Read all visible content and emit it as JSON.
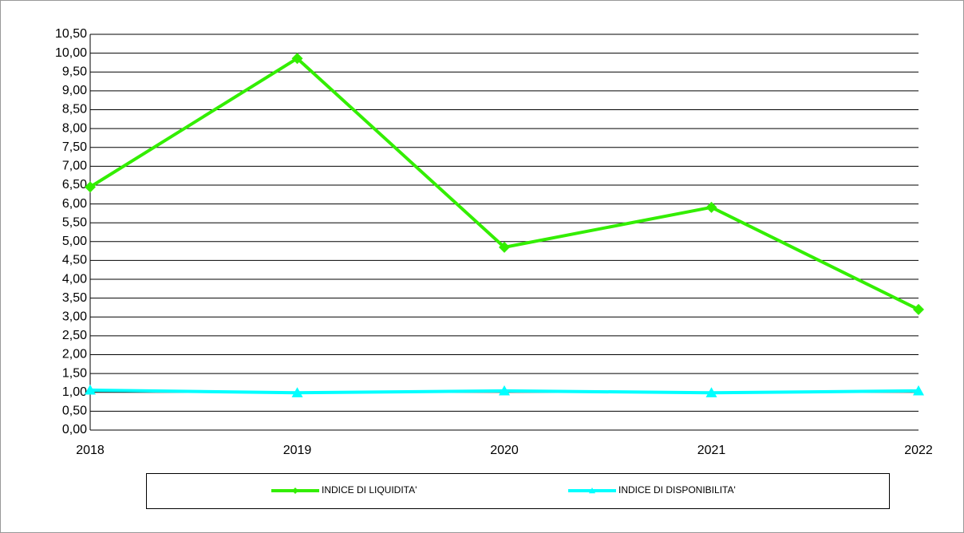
{
  "chart_data": {
    "type": "line",
    "categories": [
      "2018",
      "2019",
      "2020",
      "2021",
      "2022"
    ],
    "series": [
      {
        "name": "INDICE DI LIQUIDITA'",
        "color": "#33ee00",
        "marker": "diamond",
        "values": [
          6.45,
          9.86,
          4.85,
          5.91,
          3.2
        ]
      },
      {
        "name": "INDICE DI DISPONIBILITA'",
        "color": "#00ffff",
        "marker": "triangle",
        "values": [
          1.06,
          0.99,
          1.04,
          0.99,
          1.04
        ]
      }
    ],
    "ylim": [
      0,
      10.5
    ],
    "yticks": [
      {
        "value": 0,
        "label": "0,00"
      },
      {
        "value": 0.5,
        "label": "0,50"
      },
      {
        "value": 1,
        "label": "1,00"
      },
      {
        "value": 1.5,
        "label": "1,50"
      },
      {
        "value": 2,
        "label": "2,00"
      },
      {
        "value": 2.5,
        "label": "2,50"
      },
      {
        "value": 3,
        "label": "3,00"
      },
      {
        "value": 3.5,
        "label": "3,50"
      },
      {
        "value": 4,
        "label": "4,00"
      },
      {
        "value": 4.5,
        "label": "4,50"
      },
      {
        "value": 5,
        "label": "5,00"
      },
      {
        "value": 5.5,
        "label": "5,50"
      },
      {
        "value": 6,
        "label": "6,00"
      },
      {
        "value": 6.5,
        "label": "6,50"
      },
      {
        "value": 7,
        "label": "7,00"
      },
      {
        "value": 7.5,
        "label": "7,50"
      },
      {
        "value": 8,
        "label": "8,00"
      },
      {
        "value": 8.5,
        "label": "8,50"
      },
      {
        "value": 9,
        "label": "9,00"
      },
      {
        "value": 9.5,
        "label": "9,50"
      },
      {
        "value": 10,
        "label": "10,00"
      },
      {
        "value": 10.5,
        "label": "10,50"
      }
    ],
    "grid": true,
    "legend": "bottom"
  }
}
